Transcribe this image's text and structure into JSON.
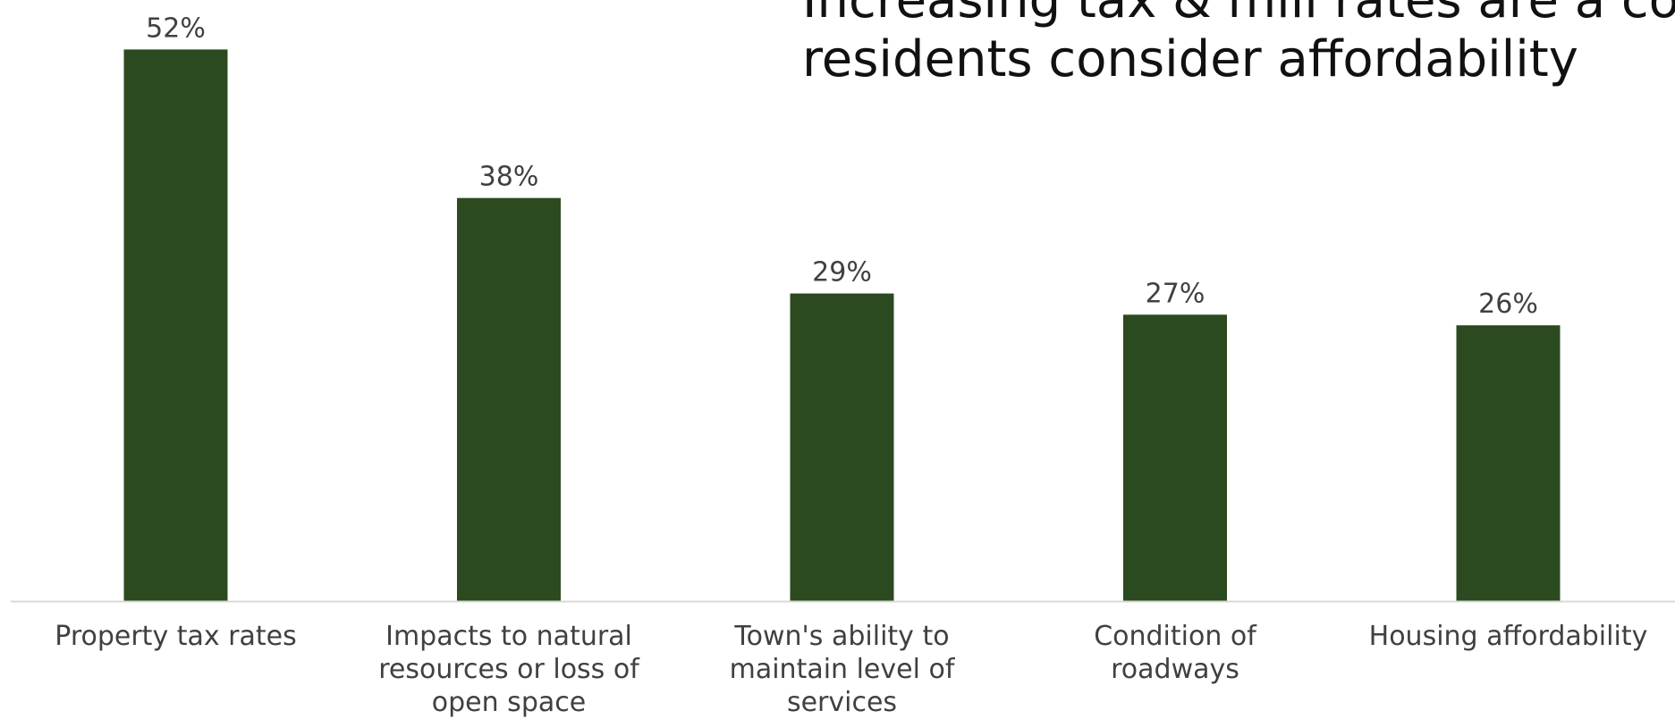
{
  "title": {
    "line1": "Increasing tax & mill rates are a co",
    "line2": "residents consider affordability"
  },
  "colors": {
    "bar": "#2c4a20",
    "axis": "#d9d9d9",
    "label_text": "#404040"
  },
  "chart_data": {
    "type": "bar",
    "categories": [
      [
        "Property tax rates"
      ],
      [
        "Impacts to natural",
        "resources or loss of",
        "open space"
      ],
      [
        "Town's ability to",
        "maintain level of",
        "services"
      ],
      [
        "Condition of",
        "roadways"
      ],
      [
        "Housing affordability"
      ]
    ],
    "values": [
      52,
      38,
      29,
      27,
      26
    ],
    "value_labels": [
      "52%",
      "38%",
      "29%",
      "27%",
      "26%"
    ],
    "unit": "%",
    "ylim": [
      0,
      56
    ],
    "grid": false,
    "legend": "none"
  }
}
